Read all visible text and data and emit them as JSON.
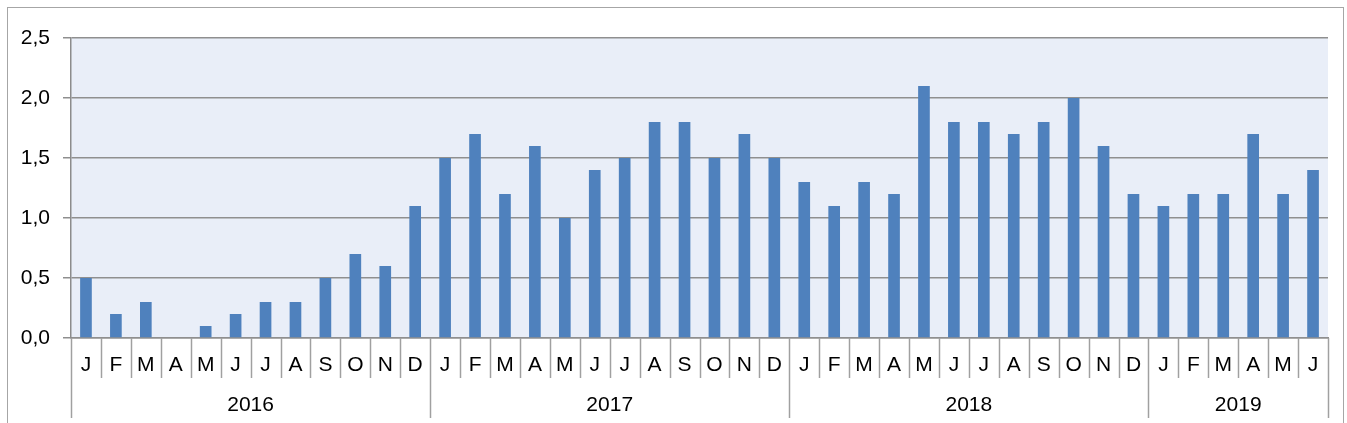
{
  "chart_data": {
    "type": "bar",
    "categories": [
      "J",
      "F",
      "M",
      "A",
      "M",
      "J",
      "J",
      "A",
      "S",
      "O",
      "N",
      "D",
      "J",
      "F",
      "M",
      "A",
      "M",
      "J",
      "J",
      "A",
      "S",
      "O",
      "N",
      "D",
      "J",
      "F",
      "M",
      "A",
      "M",
      "J",
      "J",
      "A",
      "S",
      "O",
      "N",
      "D",
      "J",
      "F",
      "M",
      "A",
      "M",
      "J"
    ],
    "values": [
      0.5,
      0.2,
      0.3,
      0,
      0.1,
      0.2,
      0.3,
      0.3,
      0.5,
      0.7,
      0.6,
      1.1,
      1.5,
      1.7,
      1.2,
      1.6,
      1.0,
      1.4,
      1.5,
      1.8,
      1.8,
      1.5,
      1.7,
      1.5,
      1.3,
      1.1,
      1.3,
      1.2,
      2.1,
      1.8,
      1.8,
      1.7,
      1.8,
      2.0,
      1.6,
      1.2,
      1.1,
      1.2,
      1.2,
      1.7,
      1.2,
      1.4
    ],
    "color": "#4f81bd",
    "ylim": [
      0,
      2.5
    ],
    "yticks": [
      {
        "value": 0,
        "label": "0,0"
      },
      {
        "value": 0.5,
        "label": "0,5"
      },
      {
        "value": 1,
        "label": "1,0"
      },
      {
        "value": 1.5,
        "label": "1,5"
      },
      {
        "value": 2,
        "label": "2,0"
      },
      {
        "value": 2.5,
        "label": "2,5"
      }
    ],
    "grid": "y",
    "annotations": [
      "2016",
      "2017",
      "2018",
      "2019"
    ]
  }
}
